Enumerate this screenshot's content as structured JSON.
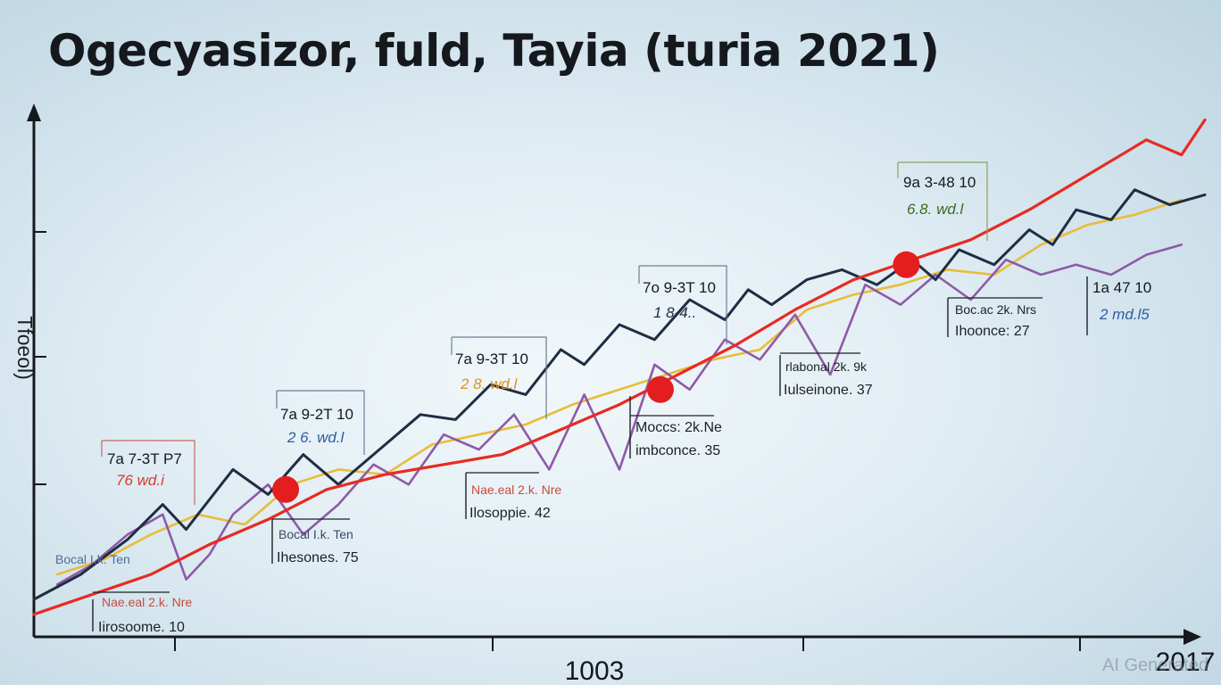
{
  "chart_data": {
    "type": "line",
    "title": "Ogecyasizor, fuld, Tayia (turia 2021)",
    "ylabel": "Tfoeol)",
    "x_tick_labels": [
      "1003",
      "2017"
    ],
    "xlim": [
      0,
      100
    ],
    "ylim": [
      0,
      100
    ],
    "grid": false,
    "legend": "none",
    "series": [
      {
        "color": "#e82a22",
        "x": [
          0,
          5,
          10,
          15,
          20,
          25,
          30,
          35,
          40,
          45,
          50,
          55,
          60,
          65,
          70,
          75,
          80,
          85,
          90,
          95,
          98,
          100
        ],
        "values": [
          2,
          6,
          10,
          16,
          21,
          27,
          30,
          32,
          34,
          39,
          44,
          50,
          56,
          63,
          69,
          73,
          77,
          83,
          90,
          97,
          94,
          101
        ]
      },
      {
        "color": "#1f2d44",
        "x": [
          0,
          4,
          8,
          11,
          13,
          17,
          20,
          23,
          26,
          29,
          33,
          36,
          39,
          42,
          45,
          47,
          50,
          53,
          56,
          59,
          61,
          63,
          66,
          69,
          72,
          75,
          77,
          79,
          82,
          85,
          87,
          89,
          92,
          94,
          97,
          100
        ],
        "values": [
          5,
          10,
          17,
          24,
          19,
          31,
          26,
          34,
          28,
          34,
          42,
          41,
          48,
          46,
          55,
          52,
          60,
          57,
          65,
          61,
          67,
          64,
          69,
          71,
          68,
          73,
          69,
          75,
          72,
          79,
          76,
          83,
          81,
          87,
          84,
          86
        ]
      },
      {
        "color": "#8e5aa6",
        "x": [
          2,
          5,
          8,
          11,
          13,
          15,
          17,
          20,
          23,
          26,
          29,
          32,
          35,
          38,
          41,
          44,
          47,
          50,
          53,
          56,
          59,
          62,
          65,
          68,
          71,
          74,
          77,
          80,
          83,
          86,
          89,
          92,
          95,
          98
        ],
        "values": [
          8,
          12,
          18,
          22,
          9,
          14,
          22,
          28,
          18,
          24,
          32,
          28,
          38,
          35,
          42,
          31,
          46,
          31,
          52,
          47,
          57,
          53,
          62,
          50,
          68,
          64,
          70,
          65,
          73,
          70,
          72,
          70,
          74,
          76
        ]
      },
      {
        "color": "#e8bd3a",
        "x": [
          2,
          6,
          10,
          14,
          18,
          22,
          26,
          30,
          34,
          38,
          42,
          46,
          50,
          54,
          58,
          62,
          66,
          70,
          74,
          78,
          82,
          86,
          90,
          94,
          98
        ],
        "values": [
          10,
          13,
          18,
          22,
          20,
          28,
          31,
          30,
          36,
          38,
          40,
          44,
          47,
          50,
          53,
          55,
          63,
          66,
          68,
          71,
          70,
          76,
          80,
          82,
          85
        ]
      }
    ],
    "highlights": [
      {
        "x": 21.5,
        "y": 27
      },
      {
        "x": 53.5,
        "y": 47
      },
      {
        "x": 74.5,
        "y": 72
      }
    ],
    "callouts": [
      {
        "line1": "7a 7-3T P7",
        "line2": "76 wd.i",
        "sub_color": "#d73a2c"
      },
      {
        "line1": "7a 9-2T 10",
        "line2": "2 6. wd.l",
        "sub_color": "#2f5f9e"
      },
      {
        "line1": "7a 9-3T 10",
        "line2": "2 8. wd.l",
        "sub_color": "#d99422"
      },
      {
        "line1": "7o 9-3T 10",
        "line2": "1 8-4..",
        "sub_color": "#1f2d44"
      },
      {
        "line1": "9a 3-48 10",
        "line2": "6.8. wd.l",
        "sub_color": "#3d6b1e"
      }
    ],
    "annotations": [
      {
        "label": "Iirosoome. 10",
        "muted": "Nae.eal 2.k. Nre"
      },
      {
        "label": "Ihesones. 75",
        "muted": "Bocal I.k. Ten"
      },
      {
        "label": "Ilosoppie. 42",
        "muted": "Nae.eal 2.k. Nre"
      },
      {
        "label": "imbconce. 35",
        "muted": "Moccs: 2k.Ne"
      },
      {
        "label": "Iulseinone. 37",
        "muted": "rlabonal 2k. 9k"
      },
      {
        "label": "Ihoonce: 27",
        "muted": "Boc.ac 2k. Nrs"
      }
    ],
    "side_note": {
      "line1": "1a 47 10",
      "line2": "2 md.l5",
      "muted": "Bocal I.k. Ten"
    }
  },
  "watermark": "AI Generated"
}
